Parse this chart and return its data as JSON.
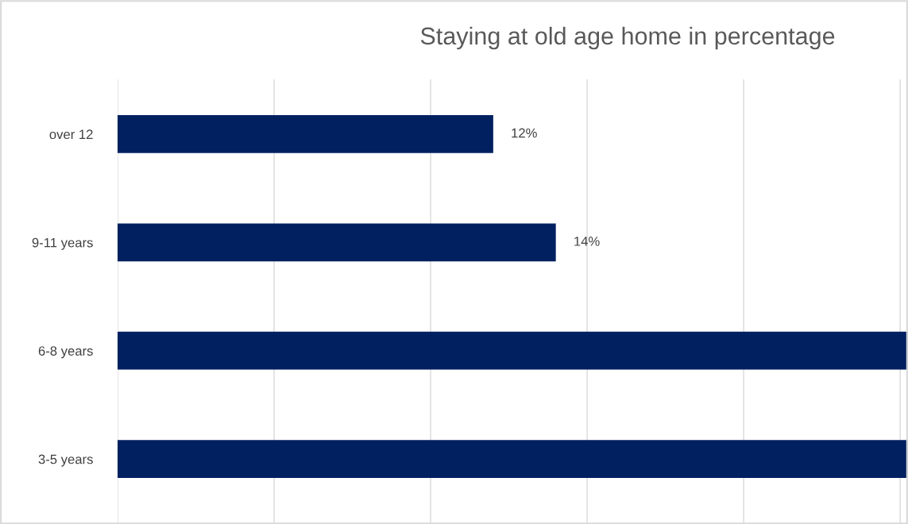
{
  "chart_data": {
    "type": "bar",
    "orientation": "horizontal",
    "title": "Staying at old age home in percentage",
    "categories": [
      "over 12",
      "9-11 years",
      "6-8 years",
      "3-5 years"
    ],
    "values": [
      12,
      14,
      25.25,
      25.25
    ],
    "value_labels": [
      "12%",
      "14%",
      null,
      null
    ],
    "color": "#002060",
    "xlim": [
      0,
      25.25
    ],
    "xticks": [
      {
        "value": 0,
        "label": null
      },
      {
        "value": 5,
        "label": null
      },
      {
        "value": 10,
        "label": null
      },
      {
        "value": 15,
        "label": null
      },
      {
        "value": 20,
        "label": null
      },
      {
        "value": 25,
        "label": null
      }
    ],
    "grid": "x",
    "tick_labels": "y"
  }
}
